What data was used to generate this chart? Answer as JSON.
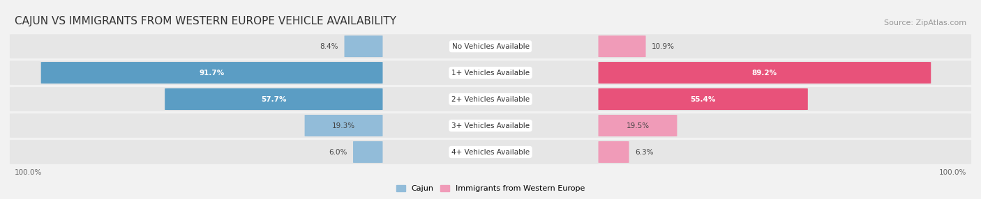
{
  "title": "CAJUN VS IMMIGRANTS FROM WESTERN EUROPE VEHICLE AVAILABILITY",
  "source": "Source: ZipAtlas.com",
  "categories": [
    "No Vehicles Available",
    "1+ Vehicles Available",
    "2+ Vehicles Available",
    "3+ Vehicles Available",
    "4+ Vehicles Available"
  ],
  "cajun_values": [
    8.4,
    91.7,
    57.7,
    19.3,
    6.0
  ],
  "immigrant_values": [
    10.9,
    89.2,
    55.4,
    19.5,
    6.3
  ],
  "cajun_color": "#92bcd9",
  "cajun_color_dark": "#5b9dc4",
  "immigrant_color": "#f09bb8",
  "immigrant_color_dark": "#e8527a",
  "cajun_label": "Cajun",
  "immigrant_label": "Immigrants from Western Europe",
  "background_color": "#f2f2f2",
  "bar_bg_color": "#e6e6e6",
  "title_fontsize": 11,
  "source_fontsize": 8,
  "label_fontsize": 7.5,
  "value_fontsize": 7.5
}
